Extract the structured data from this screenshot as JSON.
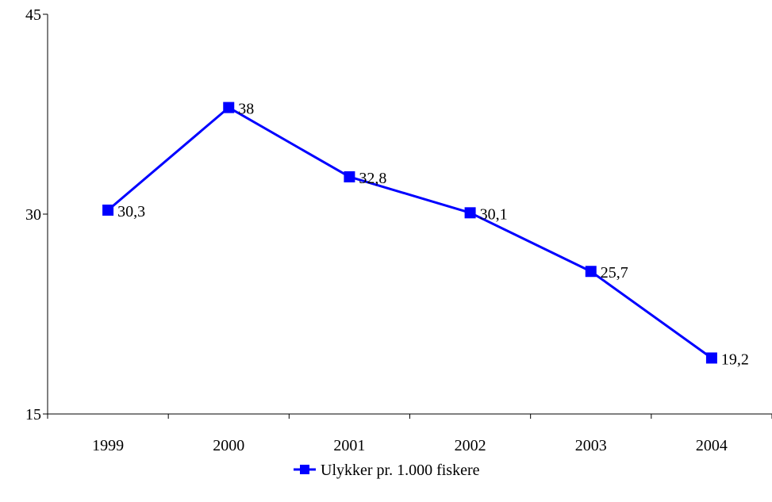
{
  "chart_data": {
    "type": "line",
    "categories": [
      "1999",
      "2000",
      "2001",
      "2002",
      "2003",
      "2004"
    ],
    "series": [
      {
        "name": "Ulykker pr. 1.000 fiskere",
        "values": [
          30.3,
          38,
          32.8,
          30.1,
          25.7,
          19.2
        ],
        "data_labels": [
          "30,3",
          "38",
          "32,8",
          "30,1",
          "25,7",
          "19,2"
        ],
        "color": "#0000ff",
        "marker": "square"
      }
    ],
    "ylim": [
      15,
      45
    ],
    "yticks": [
      15,
      30,
      45
    ],
    "ytick_labels": [
      "15",
      "30",
      "45"
    ],
    "grid": false,
    "legend": {
      "position": "bottom",
      "entries": [
        "Ulykker pr. 1.000 fiskere"
      ]
    }
  }
}
